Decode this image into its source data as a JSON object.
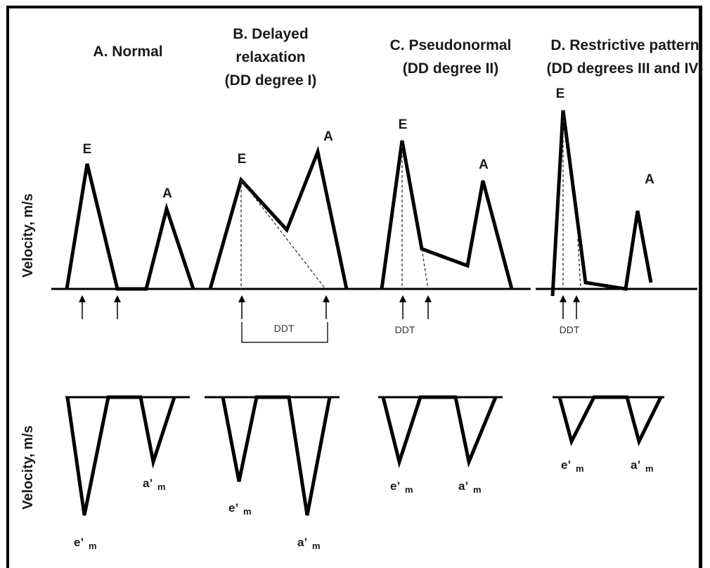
{
  "axis_labels": {
    "mitral_velocity": "Velocity, m/s",
    "tissue_velocity": "Velocity, m/s"
  },
  "panels": [
    {
      "title_lines": [
        "A. Normal"
      ],
      "peak_e": "E",
      "peak_a": "A",
      "tdi_e": "e’",
      "tdi_a": "a’",
      "tdi_sub": "m"
    },
    {
      "title_lines": [
        "B. Delayed",
        "relaxation",
        "(DD degree I)"
      ],
      "peak_e": "E",
      "peak_a": "A",
      "ddt_label": "DDT",
      "tdi_e": "e’",
      "tdi_a": "a’",
      "tdi_sub": "m"
    },
    {
      "title_lines": [
        "C. Pseudonormal",
        "(DD degree II)"
      ],
      "peak_e": "E",
      "peak_a": "A",
      "ddt_label": "DDT",
      "tdi_e": "e’",
      "tdi_a": "a’",
      "tdi_sub": "m"
    },
    {
      "title_lines": [
        "D. Restrictive pattern",
        "(DD degrees III and IV)"
      ],
      "peak_e": "E",
      "peak_a": "A",
      "ddt_label": "DDT",
      "tdi_e": "e’",
      "tdi_a": "a’",
      "tdi_sub": "m"
    }
  ]
}
